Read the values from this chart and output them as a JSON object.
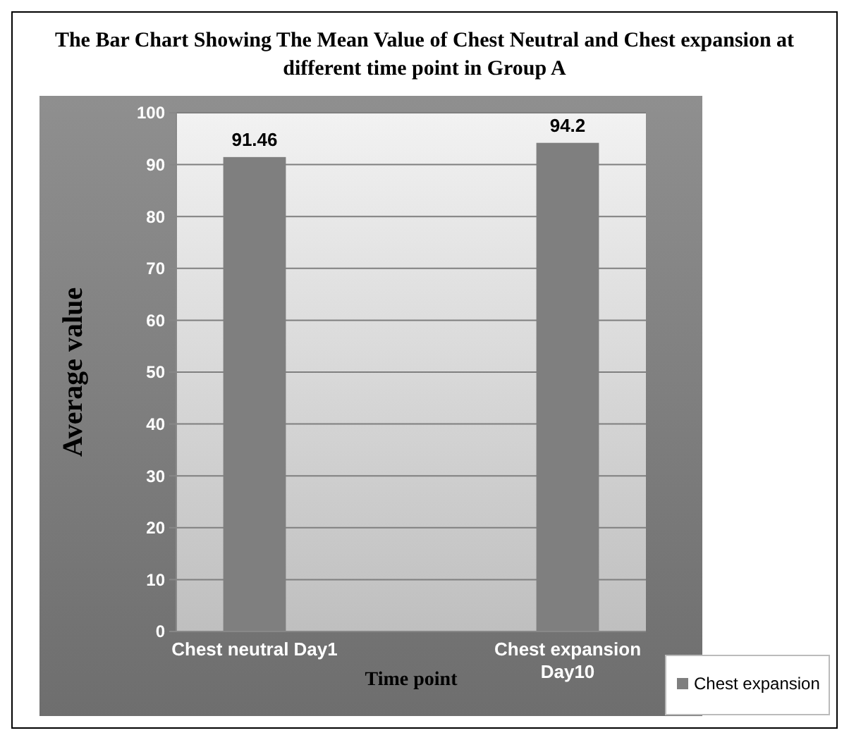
{
  "chart_data": {
    "type": "bar",
    "title": "The Bar Chart Showing The Mean Value of Chest Neutral and Chest expansion at different time point in Group A",
    "xlabel": "Time point",
    "ylabel": "Average value",
    "categories": [
      "Chest neutral Day1",
      null,
      "Chest expansion Day10"
    ],
    "series": [
      {
        "name": "Chest expansion",
        "color": "#7f7f7f",
        "values": [
          91.46,
          null,
          94.2
        ]
      }
    ],
    "ylim": [
      0,
      100
    ],
    "yticks": [
      0,
      10,
      20,
      30,
      40,
      50,
      60,
      70,
      80,
      90,
      100
    ],
    "grid": "y",
    "data_labels": true,
    "legend": "bottom right"
  }
}
